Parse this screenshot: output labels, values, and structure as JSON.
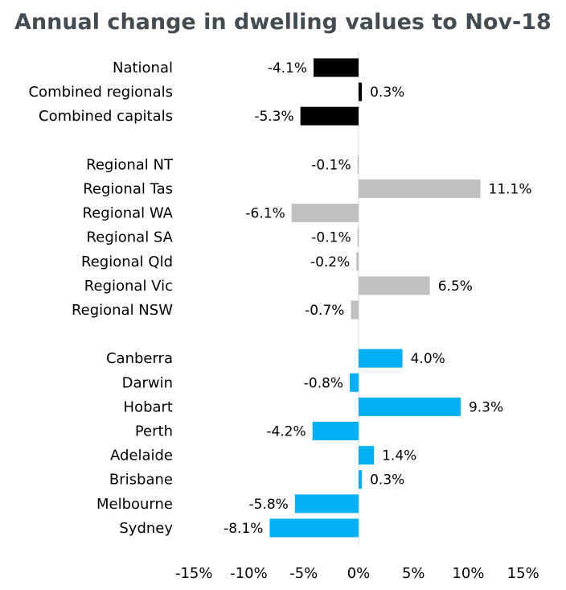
{
  "chart_data": {
    "type": "bar",
    "orientation": "horizontal",
    "title": "Annual change in dwelling values to Nov-18",
    "xlim": [
      -15,
      15
    ],
    "xticks": [
      -15,
      -10,
      -5,
      0,
      5,
      10,
      15
    ],
    "tick_suffix": "%",
    "grid": false,
    "colors": {
      "aggregate": "#000000",
      "regional": "#c0c0c0",
      "capital": "#00b0f0",
      "zero_line": "#d9d9d9"
    },
    "groups": [
      {
        "color_key": "aggregate",
        "items": [
          {
            "category": "National",
            "value": -4.1,
            "label": "-4.1%"
          },
          {
            "category": "Combined regionals",
            "value": 0.3,
            "label": "0.3%"
          },
          {
            "category": "Combined capitals",
            "value": -5.3,
            "label": "-5.3%"
          }
        ]
      },
      {
        "color_key": "regional",
        "items": [
          {
            "category": "Regional NT",
            "value": -0.1,
            "label": "-0.1%"
          },
          {
            "category": "Regional Tas",
            "value": 11.1,
            "label": "11.1%"
          },
          {
            "category": "Regional WA",
            "value": -6.1,
            "label": "-6.1%"
          },
          {
            "category": "Regional SA",
            "value": -0.1,
            "label": "-0.1%"
          },
          {
            "category": "Regional Qld",
            "value": -0.2,
            "label": "-0.2%"
          },
          {
            "category": "Regional Vic",
            "value": 6.5,
            "label": "6.5%"
          },
          {
            "category": "Regional NSW",
            "value": -0.7,
            "label": "-0.7%"
          }
        ]
      },
      {
        "color_key": "capital",
        "items": [
          {
            "category": "Canberra",
            "value": 4.0,
            "label": "4.0%"
          },
          {
            "category": "Darwin",
            "value": -0.8,
            "label": "-0.8%"
          },
          {
            "category": "Hobart",
            "value": 9.3,
            "label": "9.3%"
          },
          {
            "category": "Perth",
            "value": -4.2,
            "label": "-4.2%"
          },
          {
            "category": "Adelaide",
            "value": 1.4,
            "label": "1.4%"
          },
          {
            "category": "Brisbane",
            "value": 0.3,
            "label": "0.3%"
          },
          {
            "category": "Melbourne",
            "value": -5.8,
            "label": "-5.8%"
          },
          {
            "category": "Sydney",
            "value": -8.1,
            "label": "-8.1%"
          }
        ]
      }
    ]
  }
}
